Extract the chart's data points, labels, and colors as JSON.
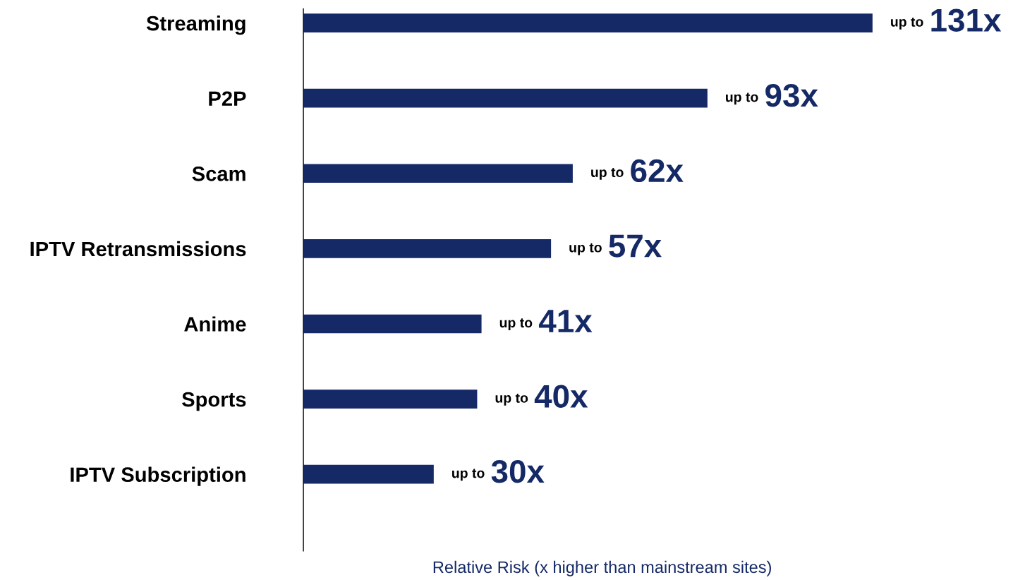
{
  "chart_data": {
    "type": "bar",
    "orientation": "horizontal",
    "xlabel": "Relative Risk (x higher than mainstream sites)",
    "categories": [
      "Streaming",
      "P2P",
      "Scam",
      "IPTV Retransmissions",
      "Anime",
      "Sports",
      "IPTV Subscription"
    ],
    "values": [
      131,
      93,
      62,
      57,
      41,
      40,
      30
    ],
    "value_labels": [
      "up to 131x",
      "up to 93x",
      "up to 62x",
      "up to 57x",
      "up to 41x",
      "up to 40x",
      "up to 30x"
    ],
    "color": "#142966",
    "tick_labels": "y",
    "grid": false,
    "legend": false
  }
}
